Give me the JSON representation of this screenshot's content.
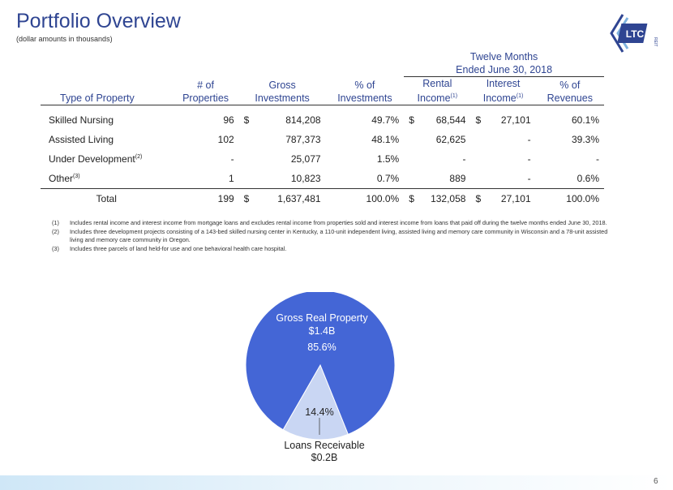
{
  "title": "Portfolio Overview",
  "subtitle": "(dollar amounts in thousands)",
  "logo": {
    "text": "LTC",
    "subtext": "REIT",
    "color": "#2f4592"
  },
  "table": {
    "group_header": "Twelve Months Ended June 30, 2018",
    "headers": {
      "type": "Type of Property",
      "properties": [
        "# of",
        "Properties"
      ],
      "gross": [
        "Gross",
        "Investments"
      ],
      "pct_inv": [
        "% of",
        "Investments"
      ],
      "rental": [
        "Rental",
        "Income",
        "(1)"
      ],
      "interest": [
        "Interest",
        "Income",
        "(1)"
      ],
      "pct_rev": [
        "% of",
        "Revenues"
      ]
    },
    "rows": [
      {
        "type": "Skilled Nursing",
        "sup": "",
        "properties": "96",
        "gross_cur": "$",
        "gross": "814,208",
        "pct_inv": "49.7%",
        "rental_cur": "$",
        "rental": "68,544",
        "interest_cur": "$",
        "interest": "27,101",
        "pct_rev": "60.1%"
      },
      {
        "type": "Assisted Living",
        "sup": "",
        "properties": "102",
        "gross_cur": "",
        "gross": "787,373",
        "pct_inv": "48.1%",
        "rental_cur": "",
        "rental": "62,625",
        "interest_cur": "",
        "interest": "-",
        "pct_rev": "39.3%"
      },
      {
        "type": "Under Development",
        "sup": "(2)",
        "properties": "-",
        "gross_cur": "",
        "gross": "25,077",
        "pct_inv": "1.5%",
        "rental_cur": "",
        "rental": "-",
        "interest_cur": "",
        "interest": "-",
        "pct_rev": "-"
      },
      {
        "type": "Other",
        "sup": "(3)",
        "properties": "1",
        "gross_cur": "",
        "gross": "10,823",
        "pct_inv": "0.7%",
        "rental_cur": "",
        "rental": "889",
        "interest_cur": "",
        "interest": "-",
        "pct_rev": "0.6%"
      }
    ],
    "total": {
      "type": "Total",
      "properties": "199",
      "gross_cur": "$",
      "gross": "1,637,481",
      "pct_inv": "100.0%",
      "rental_cur": "$",
      "rental": "132,058",
      "interest_cur": "$",
      "interest": "27,101",
      "pct_rev": "100.0%"
    }
  },
  "footnotes": [
    {
      "num": "(1)",
      "text": "Includes rental income and interest income from mortgage loans and excludes rental income from properties sold and interest income from loans that paid off during the twelve months ended June 30, 2018."
    },
    {
      "num": "(2)",
      "text": "Includes three development projects consisting of a 143-bed skilled nursing center in Kentucky, a 110-unit independent living, assisted living and memory care community in Wisconsin and a 78-unit assisted living and memory care community in Oregon."
    },
    {
      "num": "(3)",
      "text": "Includes three parcels of land held-for use and one behavioral health care hospital."
    }
  ],
  "chart_data": {
    "type": "pie",
    "slices": [
      {
        "label": "Gross Real Property",
        "amount": "$1.4B",
        "value": 85.6,
        "pct_label": "85.6%",
        "color": "#4466d6"
      },
      {
        "label": "Loans Receivable",
        "amount": "$0.2B",
        "value": 14.4,
        "pct_label": "14.4%",
        "color": "#c9d6f3"
      }
    ]
  },
  "page_number": "6"
}
